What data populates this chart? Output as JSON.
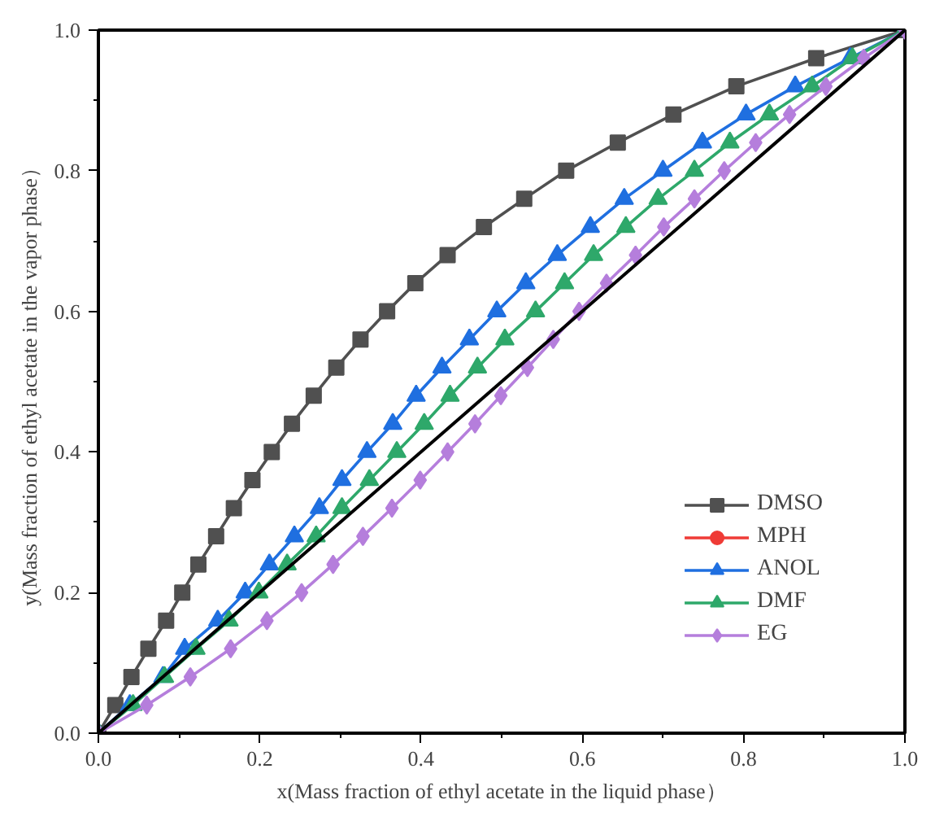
{
  "chart_data": {
    "type": "line",
    "xlabel": "x(Mass fraction of ethyl acetate in the liquid phase）",
    "ylabel": "y(Mass fraction of ethyl acetate in the vapor phase）",
    "xlim": [
      0,
      1
    ],
    "ylim": [
      0,
      1
    ],
    "xticks": [
      {
        "value": 0,
        "label": "0.0"
      },
      0.2,
      0.4,
      0.6,
      0.8,
      {
        "value": 1,
        "label": "1.0"
      }
    ],
    "yticks": [
      {
        "value": 0,
        "label": "0.0"
      },
      0.2,
      0.4,
      0.6,
      0.8,
      {
        "value": 1,
        "label": "1.0"
      }
    ],
    "grid": false,
    "legend": "bottom right",
    "series": [
      {
        "name": "DMSO",
        "color": "#505050",
        "marker": "square",
        "x": [
          0,
          0.021,
          0.041,
          0.062,
          0.084,
          0.104,
          0.124,
          0.146,
          0.168,
          0.191,
          0.215,
          0.24,
          0.267,
          0.295,
          0.325,
          0.358,
          0.393,
          0.433,
          0.478,
          0.528,
          0.58,
          0.644,
          0.713,
          0.791,
          0.89,
          1
        ],
        "values": [
          0,
          0.04,
          0.08,
          0.12,
          0.16,
          0.2,
          0.24,
          0.28,
          0.32,
          0.36,
          0.4,
          0.44,
          0.48,
          0.52,
          0.56,
          0.6,
          0.64,
          0.68,
          0.72,
          0.76,
          0.8,
          0.84,
          0.88,
          0.92,
          0.96,
          1
        ]
      },
      {
        "name": "MPH",
        "color": "#ef3b36",
        "marker": "circle"
      },
      {
        "name": "ANOL",
        "color": "#1f6fe0",
        "marker": "triangle",
        "x": [
          0,
          0.039,
          0.08,
          0.107,
          0.148,
          0.182,
          0.212,
          0.243,
          0.274,
          0.302,
          0.333,
          0.365,
          0.394,
          0.426,
          0.46,
          0.494,
          0.53,
          0.569,
          0.61,
          0.652,
          0.7,
          0.749,
          0.803,
          0.864,
          0.932,
          1
        ],
        "values": [
          0,
          0.04,
          0.08,
          0.12,
          0.16,
          0.2,
          0.24,
          0.28,
          0.32,
          0.36,
          0.4,
          0.44,
          0.48,
          0.52,
          0.56,
          0.6,
          0.64,
          0.68,
          0.72,
          0.76,
          0.8,
          0.84,
          0.88,
          0.92,
          0.96,
          1
        ]
      },
      {
        "name": "DMF",
        "color": "#2ea86a",
        "marker": "triangle",
        "x": [
          0,
          0.043,
          0.082,
          0.121,
          0.162,
          0.199,
          0.234,
          0.27,
          0.302,
          0.336,
          0.37,
          0.404,
          0.436,
          0.47,
          0.504,
          0.542,
          0.578,
          0.614,
          0.654,
          0.694,
          0.739,
          0.783,
          0.832,
          0.885,
          0.935,
          1
        ],
        "values": [
          0,
          0.04,
          0.08,
          0.12,
          0.16,
          0.2,
          0.24,
          0.28,
          0.32,
          0.36,
          0.4,
          0.44,
          0.48,
          0.52,
          0.56,
          0.6,
          0.64,
          0.68,
          0.72,
          0.76,
          0.8,
          0.84,
          0.88,
          0.92,
          0.96,
          1
        ]
      },
      {
        "name": "EG",
        "color": "#b57edc",
        "marker": "diamond",
        "x": [
          0,
          0.06,
          0.114,
          0.164,
          0.209,
          0.252,
          0.291,
          0.328,
          0.364,
          0.399,
          0.433,
          0.467,
          0.499,
          0.532,
          0.564,
          0.596,
          0.63,
          0.666,
          0.701,
          0.739,
          0.776,
          0.815,
          0.857,
          0.902,
          0.949,
          1
        ],
        "values": [
          0,
          0.04,
          0.08,
          0.12,
          0.16,
          0.2,
          0.24,
          0.28,
          0.32,
          0.36,
          0.4,
          0.44,
          0.48,
          0.52,
          0.56,
          0.6,
          0.64,
          0.68,
          0.72,
          0.76,
          0.8,
          0.84,
          0.88,
          0.92,
          0.96,
          1
        ]
      },
      {
        "color": "#000000",
        "marker": "none",
        "x": [
          0,
          1
        ],
        "values": [
          0,
          1
        ]
      }
    ]
  }
}
